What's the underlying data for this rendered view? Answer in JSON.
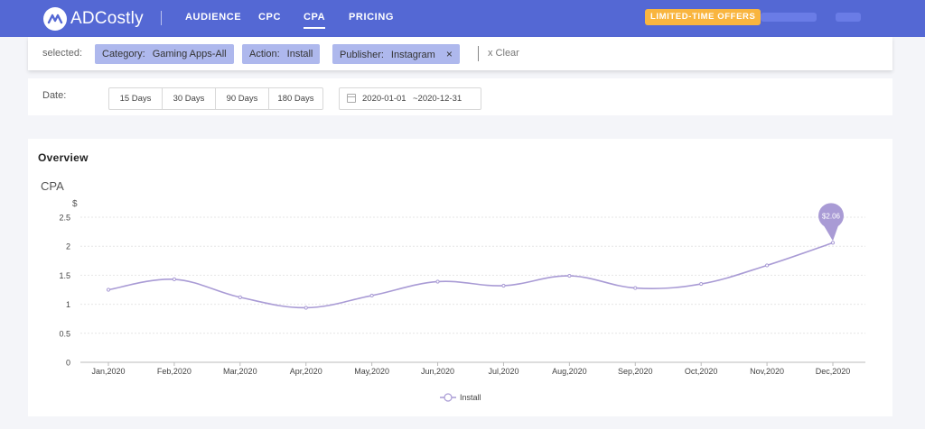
{
  "nav": {
    "brand": "ADCostly",
    "items": [
      "AUDIENCE",
      "CPC",
      "CPA",
      "PRICING"
    ],
    "active": "CPA",
    "offers": "LIMITED-TIME OFFERS"
  },
  "filters": {
    "label": "selected:",
    "chips": [
      {
        "key": "Category:",
        "value": "Gaming Apps-All",
        "removable": false
      },
      {
        "key": "Action:",
        "value": "Install",
        "removable": false
      },
      {
        "key": "Publisher:",
        "value": "Instagram",
        "removable": true
      }
    ],
    "remove_icon": "×",
    "clear": "x Clear"
  },
  "date": {
    "label": "Date:",
    "ranges": [
      "15 Days",
      "30 Days",
      "90 Days",
      "180 Days"
    ],
    "start": "2020-01-01",
    "end": "~2020-12-31"
  },
  "overview": {
    "title": "Overview"
  },
  "chart_data": {
    "type": "line",
    "title": "CPA",
    "ylabel": "$",
    "xlabel": "",
    "categories": [
      "Jan,2020",
      "Feb,2020",
      "Mar,2020",
      "Apr,2020",
      "May,2020",
      "Jun,2020",
      "Jul,2020",
      "Aug,2020",
      "Sep,2020",
      "Oct,2020",
      "Nov,2020",
      "Dec,2020"
    ],
    "series": [
      {
        "name": "Install",
        "values": [
          1.25,
          1.43,
          1.12,
          0.94,
          1.15,
          1.39,
          1.32,
          1.49,
          1.28,
          1.35,
          1.67,
          2.06
        ],
        "color": "#a99bd5"
      }
    ],
    "ylim": [
      0,
      2.5
    ],
    "yticks": [
      "0",
      "0.5",
      "1",
      "1.5",
      "2",
      "2.5"
    ],
    "grid": true,
    "legend": "bottom",
    "annotation": {
      "index": 11,
      "text": "$2.06",
      "color": "#a99bd5"
    }
  }
}
